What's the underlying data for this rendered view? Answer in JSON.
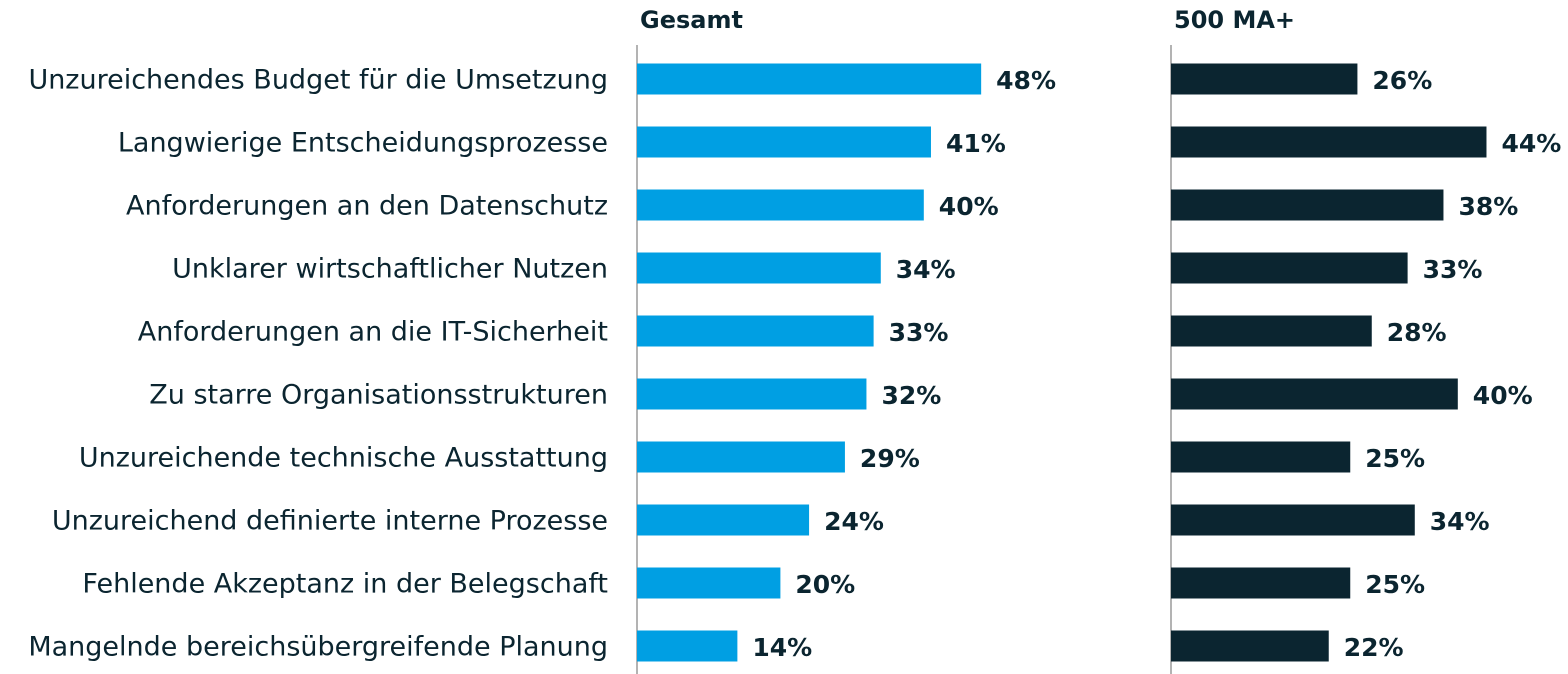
{
  "chart_data": {
    "type": "bar",
    "orientation": "horizontal",
    "categories": [
      "Unzureichendes Budget für die Umsetzung",
      "Langwierige Entscheidungsprozesse",
      "Anforderungen an den Datenschutz",
      "Unklarer wirtschaftlicher Nutzen",
      "Anforderungen an die IT-Sicherheit",
      "Zu starre Organisationsstrukturen",
      "Unzureichende technische Ausstattung",
      "Unzureichend definierte interne Prozesse",
      "Fehlende Akzeptanz in der Belegschaft",
      "Mangelnde bereichsübergreifende Planung"
    ],
    "series": [
      {
        "name": "Gesamt",
        "color": "#009fe3",
        "values": [
          48,
          41,
          40,
          34,
          33,
          32,
          29,
          24,
          20,
          14
        ],
        "value_labels": [
          "48%",
          "41%",
          "40%",
          "34%",
          "33%",
          "32%",
          "29%",
          "24%",
          "20%",
          "14%"
        ]
      },
      {
        "name": "500 MA+",
        "color": "#0b2530",
        "values": [
          26,
          44,
          38,
          33,
          28,
          40,
          25,
          34,
          25,
          22
        ],
        "value_labels": [
          "26%",
          "44%",
          "38%",
          "33%",
          "28%",
          "40%",
          "25%",
          "34%",
          "25%",
          "22%"
        ]
      }
    ]
  }
}
